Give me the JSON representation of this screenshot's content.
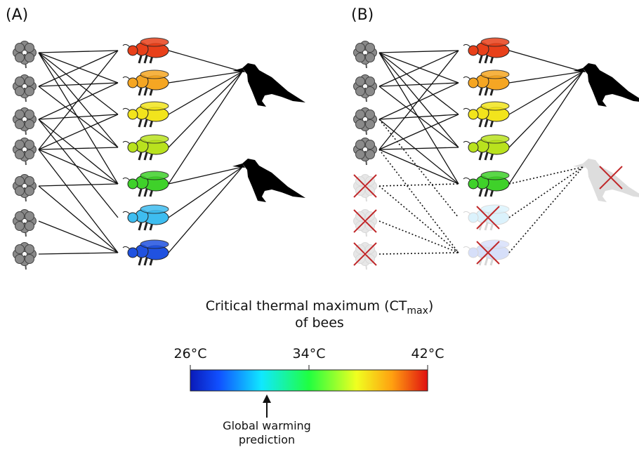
{
  "panels": [
    {
      "label": "(A)"
    },
    {
      "label": "(B)"
    }
  ],
  "legend": {
    "title": "Critical thermal maximum (CT",
    "subscript": "max",
    "title_end": ")",
    "subtitle": "of bees",
    "ticks": [
      "26°C",
      "34°C",
      "42°C"
    ],
    "annotation": [
      "Global warming",
      "prediction"
    ]
  }
}
